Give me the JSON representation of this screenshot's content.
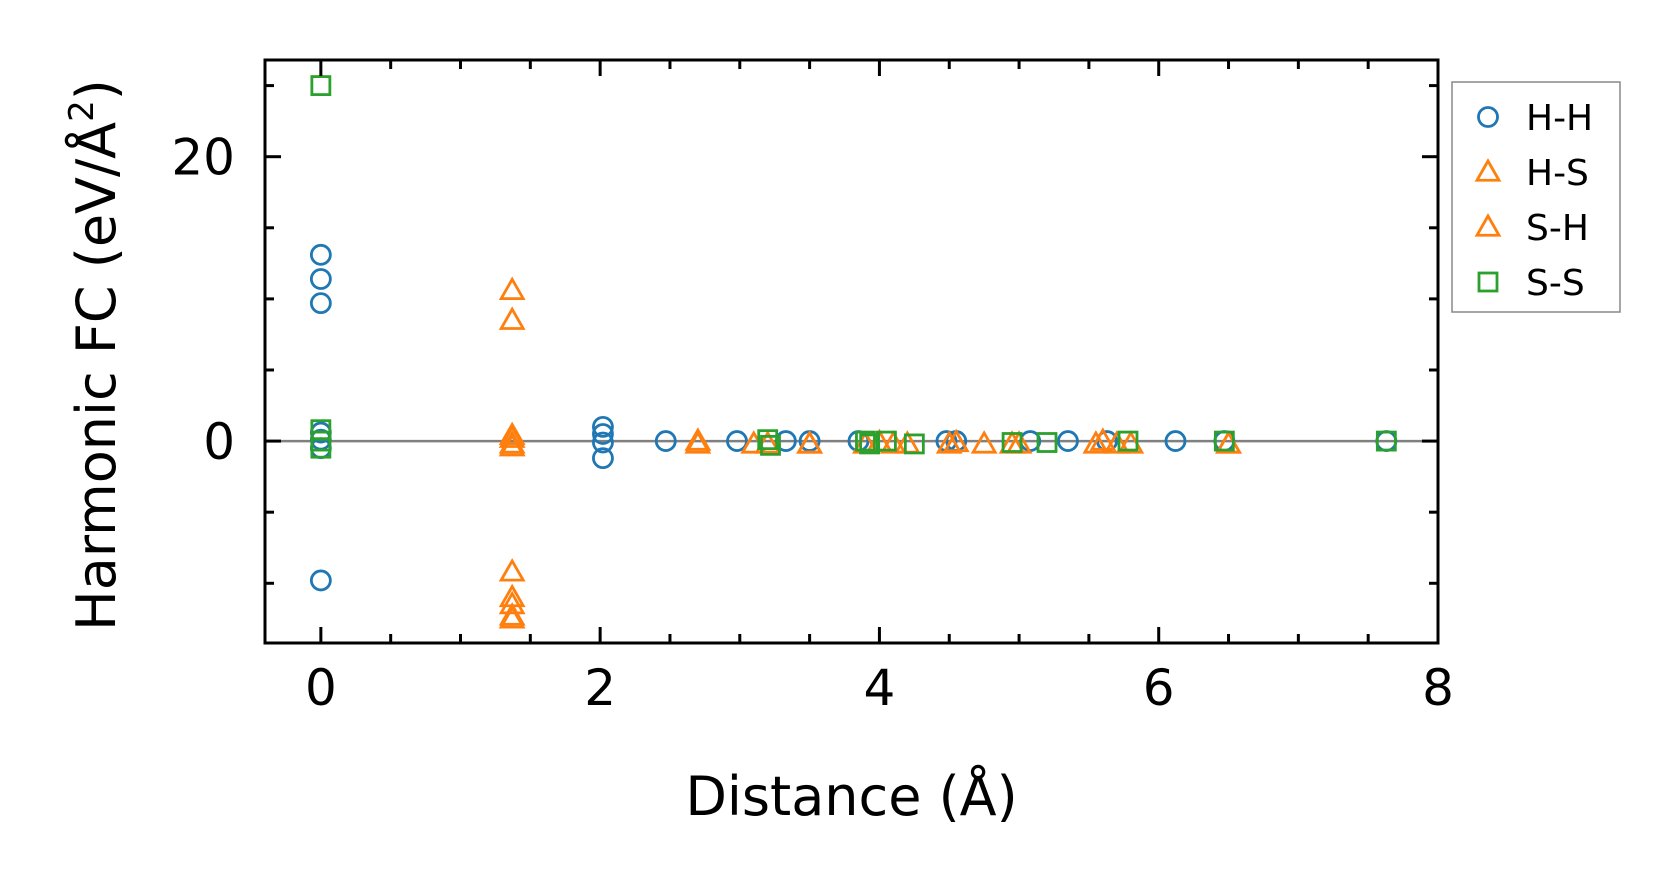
{
  "chart_data": {
    "type": "scatter",
    "xlabel": "Distance (Å)",
    "ylabel_main": "Harmonic FC (eV/Å",
    "ylabel_sup": "2",
    "ylabel_close": ")",
    "xlim": [
      -0.4,
      8.0
    ],
    "ylim": [
      -14.2,
      26.8
    ],
    "xticks": [
      0,
      2,
      4,
      6,
      8
    ],
    "xtick_labels": [
      "0",
      "2",
      "4",
      "6",
      "8"
    ],
    "yticks": [
      0,
      20
    ],
    "ytick_labels": [
      "0",
      "20"
    ],
    "x_minor_step": 0.5,
    "y_minor_step": 5,
    "zero_line": true,
    "grid": false,
    "legend_position": "outside-right",
    "series": [
      {
        "name": "H-H",
        "marker": "circle",
        "color": "#1f77b4",
        "x": [
          0,
          0,
          0,
          0,
          0,
          0,
          0,
          2.02,
          2.02,
          2.02,
          2.02,
          2.47,
          2.98,
          3.33,
          3.5,
          3.85,
          4.48,
          4.55,
          5.08,
          5.35,
          5.63,
          6.12,
          6.47,
          7.63
        ],
        "y": [
          13.1,
          11.4,
          9.7,
          0.6,
          0.1,
          -0.5,
          -9.8,
          1.0,
          0.5,
          -0.1,
          -1.2,
          0,
          0,
          0,
          0,
          0,
          0,
          0,
          0,
          0,
          0,
          0,
          0,
          0
        ]
      },
      {
        "name": "H-S",
        "marker": "triangle",
        "color": "#ff7f0e",
        "x": [
          1.37,
          1.37,
          1.37,
          1.37,
          1.37,
          1.37,
          1.37,
          2.7,
          3.1,
          3.5,
          3.9,
          4.1,
          4.5,
          4.75,
          5.0,
          5.55,
          5.7,
          6.5
        ],
        "y": [
          10.6,
          8.5,
          0.2,
          -0.4,
          -9.2,
          -11.5,
          -12.5,
          -0.2,
          -0.2,
          -0.2,
          -0.2,
          -0.2,
          -0.2,
          -0.2,
          -0.2,
          -0.2,
          -0.2,
          -0.2
        ]
      },
      {
        "name": "S-H",
        "marker": "triangle",
        "color": "#ff7f0e",
        "x": [
          1.37,
          1.37,
          1.37,
          1.37,
          2.7,
          3.2,
          3.5,
          4.0,
          4.2,
          4.55,
          4.95,
          5.6,
          5.8,
          6.5
        ],
        "y": [
          0.4,
          -0.2,
          -11.0,
          -12.3,
          0,
          -0.2,
          -0.2,
          -0.1,
          -0.2,
          -0.1,
          -0.2,
          0,
          -0.2,
          -0.2
        ]
      },
      {
        "name": "S-S",
        "marker": "square",
        "color": "#2ca02c",
        "x": [
          0,
          0,
          0,
          0,
          3.2,
          3.22,
          3.9,
          3.93,
          4.05,
          4.25,
          4.95,
          5.2,
          5.78,
          6.47,
          7.63
        ],
        "y": [
          25.0,
          0.8,
          0,
          -0.5,
          0.1,
          -0.3,
          0,
          -0.2,
          0,
          -0.2,
          -0.1,
          -0.1,
          0,
          0,
          0
        ]
      }
    ]
  }
}
